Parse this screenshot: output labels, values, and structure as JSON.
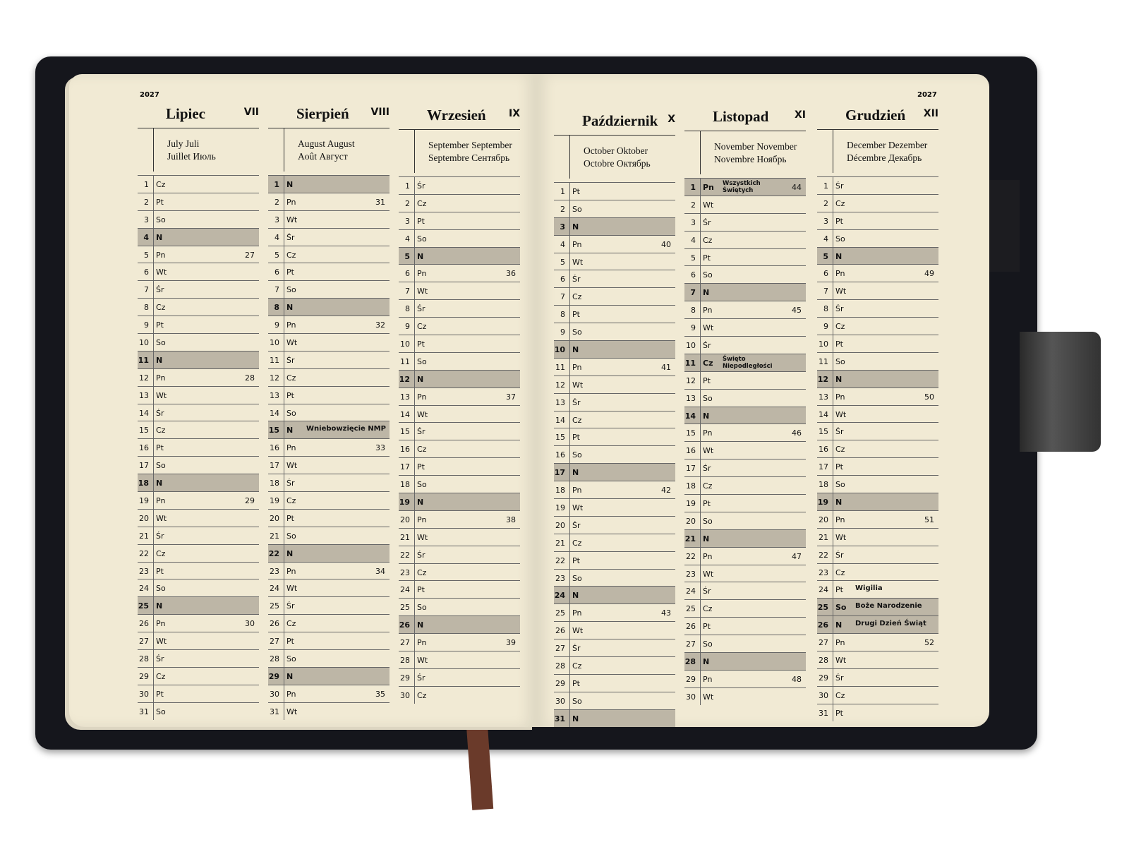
{
  "year": "2027",
  "colors": {
    "page": "#f1ead4",
    "shade": "#bdb6a6",
    "cover": "#15161c"
  },
  "months": [
    {
      "name": "Lipiec",
      "roman": "VII",
      "sub1": "July Juli",
      "sub2": "Juillet Июль",
      "weekdays": [
        "Cz",
        "Pt",
        "So",
        "N",
        "Pn",
        "Wt",
        "Śr",
        "Cz",
        "Pt",
        "So",
        "N",
        "Pn",
        "Wt",
        "Śr",
        "Cz",
        "Pt",
        "So",
        "N",
        "Pn",
        "Wt",
        "Śr",
        "Cz",
        "Pt",
        "So",
        "N",
        "Pn",
        "Wt",
        "Śr",
        "Cz",
        "Pt",
        "So"
      ],
      "weeks": {
        "5": "27",
        "12": "28",
        "19": "29",
        "26": "30"
      },
      "notes": {}
    },
    {
      "name": "Sierpień",
      "roman": "VIII",
      "sub1": "August August",
      "sub2": "Août Август",
      "weekdays": [
        "N",
        "Pn",
        "Wt",
        "Śr",
        "Cz",
        "Pt",
        "So",
        "N",
        "Pn",
        "Wt",
        "Śr",
        "Cz",
        "Pt",
        "So",
        "N",
        "Pn",
        "Wt",
        "Śr",
        "Cz",
        "Pt",
        "So",
        "N",
        "Pn",
        "Wt",
        "Śr",
        "Cz",
        "Pt",
        "So",
        "N",
        "Pn",
        "Wt"
      ],
      "weeks": {
        "2": "31",
        "9": "32",
        "16": "33",
        "23": "34",
        "30": "35"
      },
      "notes": {
        "15": "Wniebowzięcie NMP"
      }
    },
    {
      "name": "Wrzesień",
      "roman": "IX",
      "sub1": "September September",
      "sub2": "Septembre Сентябрь",
      "weekdays": [
        "Śr",
        "Cz",
        "Pt",
        "So",
        "N",
        "Pn",
        "Wt",
        "Śr",
        "Cz",
        "Pt",
        "So",
        "N",
        "Pn",
        "Wt",
        "Śr",
        "Cz",
        "Pt",
        "So",
        "N",
        "Pn",
        "Wt",
        "Śr",
        "Cz",
        "Pt",
        "So",
        "N",
        "Pn",
        "Wt",
        "Śr",
        "Cz"
      ],
      "weeks": {
        "6": "36",
        "13": "37",
        "20": "38",
        "27": "39"
      },
      "notes": {}
    },
    {
      "name": "Październik",
      "roman": "X",
      "sub1": "October Oktober",
      "sub2": "Octobre Октябрь",
      "weekdays": [
        "Pt",
        "So",
        "N",
        "Pn",
        "Wt",
        "Śr",
        "Cz",
        "Pt",
        "So",
        "N",
        "Pn",
        "Wt",
        "Śr",
        "Cz",
        "Pt",
        "So",
        "N",
        "Pn",
        "Wt",
        "Śr",
        "Cz",
        "Pt",
        "So",
        "N",
        "Pn",
        "Wt",
        "Śr",
        "Cz",
        "Pt",
        "So",
        "N"
      ],
      "weeks": {
        "4": "40",
        "11": "41",
        "18": "42",
        "25": "43"
      },
      "notes": {}
    },
    {
      "name": "Listopad",
      "roman": "XI",
      "sub1": "November November",
      "sub2": "Novembre Ноябрь",
      "weekdays": [
        "Pn",
        "Wt",
        "Śr",
        "Cz",
        "Pt",
        "So",
        "N",
        "Pn",
        "Wt",
        "Śr",
        "Cz",
        "Pt",
        "So",
        "N",
        "Pn",
        "Wt",
        "Śr",
        "Cz",
        "Pt",
        "So",
        "N",
        "Pn",
        "Wt",
        "Śr",
        "Cz",
        "Pt",
        "So",
        "N",
        "Pn",
        "Wt"
      ],
      "weeks": {
        "1": "44",
        "8": "45",
        "15": "46",
        "22": "47",
        "29": "48"
      },
      "notes": {
        "1": "Wszystkich Świętych",
        "11": "Święto Niepodległości"
      }
    },
    {
      "name": "Grudzień",
      "roman": "XII",
      "sub1": "December Dezember",
      "sub2": "Décembre Декабрь",
      "weekdays": [
        "Śr",
        "Cz",
        "Pt",
        "So",
        "N",
        "Pn",
        "Wt",
        "Śr",
        "Cz",
        "Pt",
        "So",
        "N",
        "Pn",
        "Wt",
        "Śr",
        "Cz",
        "Pt",
        "So",
        "N",
        "Pn",
        "Wt",
        "Śr",
        "Cz",
        "Pt",
        "So",
        "N",
        "Pn",
        "Wt",
        "Śr",
        "Cz",
        "Pt"
      ],
      "weeks": {
        "6": "49",
        "13": "50",
        "20": "51",
        "27": "52"
      },
      "notes": {
        "24": "Wigilia",
        "25": "Boże Narodzenie",
        "26": "Drugi Dzień Świąt"
      },
      "shaded": [
        "25",
        "26"
      ]
    }
  ],
  "shaded_holidays": {
    "1": [
      "15"
    ],
    "4": [
      "1",
      "11"
    ],
    "5": [
      "25",
      "26"
    ]
  }
}
